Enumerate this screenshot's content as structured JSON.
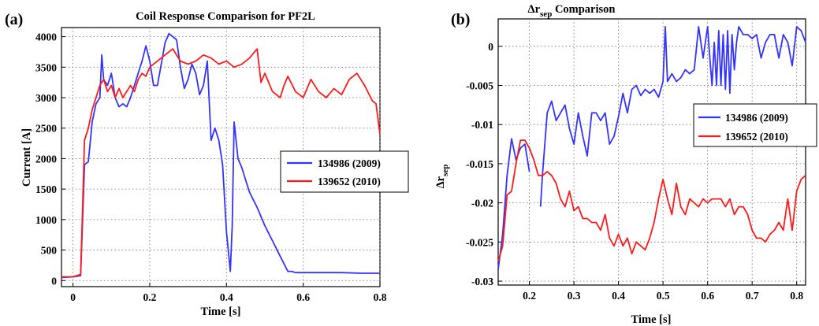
{
  "chart_data": [
    {
      "panel": "(a)",
      "type": "line",
      "title": "Coil Response Comparison for PF2L",
      "xlabel": "Time [s]",
      "ylabel": "Current [A]",
      "xlim": [
        -0.03,
        0.8
      ],
      "ylim": [
        -100,
        4150
      ],
      "xticks": [
        0,
        0.2,
        0.4,
        0.6,
        0.8
      ],
      "xtick_labels": [
        "0",
        "0.2",
        "0.4",
        "0.6",
        "0.8"
      ],
      "yticks": [
        0,
        500,
        1000,
        1500,
        2000,
        2500,
        3000,
        3500,
        4000
      ],
      "ytick_labels": [
        "0",
        "500",
        "1000",
        "1500",
        "2000",
        "2500",
        "3000",
        "3500",
        "4000"
      ],
      "grid": true,
      "legend_position": "right",
      "series": [
        {
          "name": "134986 (2009)",
          "color": "#3333ff",
          "x": [
            -0.03,
            0.0,
            0.02,
            0.03,
            0.04,
            0.05,
            0.06,
            0.07,
            0.075,
            0.08,
            0.09,
            0.1,
            0.11,
            0.12,
            0.13,
            0.14,
            0.15,
            0.16,
            0.17,
            0.18,
            0.19,
            0.2,
            0.21,
            0.22,
            0.23,
            0.24,
            0.25,
            0.26,
            0.27,
            0.28,
            0.29,
            0.3,
            0.31,
            0.32,
            0.33,
            0.34,
            0.35,
            0.36,
            0.37,
            0.38,
            0.39,
            0.4,
            0.41,
            0.415,
            0.42,
            0.425,
            0.43,
            0.44,
            0.45,
            0.46,
            0.48,
            0.5,
            0.52,
            0.54,
            0.56,
            0.57,
            0.58,
            0.6,
            0.65,
            0.7,
            0.75,
            0.8
          ],
          "y": [
            50,
            60,
            80,
            1900,
            1950,
            2600,
            2900,
            3000,
            3700,
            3300,
            3200,
            3400,
            3000,
            2850,
            2900,
            2850,
            3000,
            3200,
            3400,
            3600,
            3850,
            3600,
            3200,
            3200,
            3550,
            3900,
            4050,
            4000,
            3950,
            3500,
            3150,
            3300,
            3550,
            3400,
            3050,
            3200,
            3600,
            2300,
            2500,
            2300,
            1900,
            800,
            150,
            900,
            2600,
            2300,
            2000,
            1850,
            1650,
            1450,
            1200,
            900,
            650,
            400,
            150,
            150,
            130,
            130,
            130,
            130,
            120,
            120
          ]
        },
        {
          "name": "139652 (2010)",
          "color": "#ff1a1a",
          "x": [
            -0.03,
            0.0,
            0.02,
            0.025,
            0.03,
            0.04,
            0.05,
            0.06,
            0.07,
            0.08,
            0.09,
            0.1,
            0.11,
            0.12,
            0.13,
            0.14,
            0.15,
            0.16,
            0.17,
            0.18,
            0.19,
            0.2,
            0.22,
            0.24,
            0.26,
            0.28,
            0.3,
            0.32,
            0.34,
            0.36,
            0.38,
            0.4,
            0.42,
            0.44,
            0.46,
            0.48,
            0.49,
            0.5,
            0.52,
            0.54,
            0.55,
            0.56,
            0.58,
            0.6,
            0.62,
            0.64,
            0.66,
            0.68,
            0.7,
            0.72,
            0.74,
            0.75,
            0.76,
            0.78,
            0.79,
            0.8
          ],
          "y": [
            60,
            60,
            100,
            1200,
            2300,
            2500,
            2800,
            3000,
            3200,
            3300,
            3100,
            3200,
            3000,
            3150,
            3000,
            3100,
            3200,
            3100,
            3300,
            3400,
            3350,
            3500,
            3600,
            3700,
            3800,
            3600,
            3550,
            3600,
            3700,
            3650,
            3550,
            3600,
            3500,
            3550,
            3650,
            3800,
            3250,
            3400,
            3100,
            3000,
            3200,
            3350,
            3100,
            3000,
            3300,
            3100,
            3000,
            3150,
            3050,
            3300,
            3400,
            3300,
            3200,
            2950,
            2900,
            2400
          ]
        }
      ]
    },
    {
      "panel": "(b)",
      "type": "line",
      "title_main": "Δr",
      "title_sub": "sep",
      "title_rest": " Comparison",
      "xlabel": "Time [s]",
      "ylabel_main": "Δr",
      "ylabel_sub": "sep",
      "xlim": [
        0.13,
        0.82
      ],
      "ylim": [
        -0.0305,
        0.0035
      ],
      "xticks": [
        0.2,
        0.3,
        0.4,
        0.5,
        0.6,
        0.7,
        0.8
      ],
      "xtick_labels": [
        "0.2",
        "0.3",
        "0.4",
        "0.5",
        "0.6",
        "0.7",
        "0.8"
      ],
      "yticks": [
        0,
        -0.005,
        -0.01,
        -0.015,
        -0.02,
        -0.025,
        -0.03
      ],
      "ytick_labels": [
        "0",
        "-0.005",
        "-0.01",
        "-0.015",
        "-0.02",
        "-0.025",
        "-0.03"
      ],
      "grid": true,
      "legend_position": "right",
      "series": [
        {
          "name": "134986 (2009)",
          "color": "#3333ff",
          "segments": [
            {
              "x": [
                0.13,
                0.14,
                0.15,
                0.16,
                0.17,
                0.18,
                0.19,
                0.2
              ],
              "y": [
                -0.0285,
                -0.024,
                -0.0165,
                -0.0118,
                -0.0145,
                -0.013,
                -0.0125,
                -0.016
              ]
            },
            {
              "x": [
                0.225,
                0.23,
                0.24,
                0.25,
                0.26,
                0.27,
                0.28,
                0.29,
                0.3,
                0.31,
                0.32,
                0.33,
                0.34,
                0.35,
                0.36,
                0.37,
                0.38,
                0.39,
                0.4,
                0.41,
                0.42,
                0.43,
                0.44,
                0.45,
                0.46,
                0.47,
                0.48,
                0.49,
                0.5,
                0.505,
                0.51,
                0.52,
                0.53,
                0.54,
                0.55,
                0.56,
                0.57,
                0.58,
                0.59,
                0.6,
                0.605,
                0.61,
                0.615,
                0.62,
                0.625,
                0.63,
                0.635,
                0.64,
                0.645,
                0.65,
                0.655,
                0.66,
                0.665,
                0.67,
                0.68,
                0.69,
                0.7,
                0.71,
                0.72,
                0.73,
                0.74,
                0.75,
                0.76,
                0.77,
                0.78,
                0.79,
                0.8,
                0.81,
                0.82
              ],
              "y": [
                -0.0205,
                -0.016,
                -0.0085,
                -0.007,
                -0.0095,
                -0.0085,
                -0.0075,
                -0.0105,
                -0.0125,
                -0.0085,
                -0.0115,
                -0.014,
                -0.0085,
                -0.0085,
                -0.0095,
                -0.0085,
                -0.0125,
                -0.0115,
                -0.009,
                -0.006,
                -0.0085,
                -0.0055,
                -0.005,
                -0.0063,
                -0.0055,
                -0.006,
                -0.0055,
                -0.0065,
                -0.0045,
                0.0025,
                -0.0045,
                -0.0035,
                -0.0045,
                -0.004,
                -0.003,
                -0.0035,
                -0.003,
                0.0025,
                -0.0015,
                0.0025,
                -0.0015,
                -0.005,
                0.0005,
                -0.005,
                0.002,
                -0.005,
                0.0015,
                -0.0055,
                0.002,
                -0.006,
                0.0015,
                -0.003,
                0.0005,
                0.0025,
                0.0015,
                0.0015,
                0.001,
                0.0015,
                -0.0015,
                0.0005,
                0.0015,
                0.0015,
                -0.0015,
                0.0015,
                0.0005,
                -0.0025,
                0.0025,
                0.002,
                0.0005
              ]
            }
          ]
        },
        {
          "name": "139652 (2010)",
          "color": "#ff1a1a",
          "segments": [
            {
              "x": [
                0.13,
                0.14,
                0.15,
                0.16,
                0.17,
                0.18,
                0.19,
                0.2,
                0.21,
                0.22,
                0.23,
                0.24,
                0.25,
                0.26,
                0.27,
                0.28,
                0.29,
                0.3,
                0.31,
                0.32,
                0.33,
                0.34,
                0.35,
                0.36,
                0.37,
                0.38,
                0.39,
                0.4,
                0.41,
                0.42,
                0.43,
                0.44,
                0.45,
                0.46,
                0.47,
                0.48,
                0.49,
                0.5,
                0.51,
                0.52,
                0.53,
                0.54,
                0.55,
                0.56,
                0.57,
                0.58,
                0.59,
                0.6,
                0.61,
                0.62,
                0.63,
                0.64,
                0.65,
                0.66,
                0.67,
                0.68,
                0.69,
                0.7,
                0.71,
                0.72,
                0.73,
                0.74,
                0.75,
                0.76,
                0.77,
                0.78,
                0.79,
                0.8,
                0.81,
                0.82
              ],
              "y": [
                -0.0275,
                -0.0255,
                -0.019,
                -0.0185,
                -0.015,
                -0.012,
                -0.012,
                -0.013,
                -0.0145,
                -0.0165,
                -0.0165,
                -0.016,
                -0.0165,
                -0.0175,
                -0.0195,
                -0.0205,
                -0.0185,
                -0.021,
                -0.0205,
                -0.022,
                -0.022,
                -0.0225,
                -0.0225,
                -0.0235,
                -0.0215,
                -0.0245,
                -0.0255,
                -0.024,
                -0.0255,
                -0.0245,
                -0.0265,
                -0.025,
                -0.0255,
                -0.026,
                -0.0245,
                -0.0225,
                -0.0195,
                -0.017,
                -0.0195,
                -0.0215,
                -0.0175,
                -0.0205,
                -0.0215,
                -0.0195,
                -0.02,
                -0.0205,
                -0.0195,
                -0.02,
                -0.0195,
                -0.0195,
                -0.0195,
                -0.0205,
                -0.0195,
                -0.0215,
                -0.0205,
                -0.0205,
                -0.0215,
                -0.0235,
                -0.0245,
                -0.0245,
                -0.025,
                -0.024,
                -0.0235,
                -0.0225,
                -0.0235,
                -0.0195,
                -0.0235,
                -0.0185,
                -0.017,
                -0.0165
              ]
            }
          ]
        }
      ]
    }
  ]
}
